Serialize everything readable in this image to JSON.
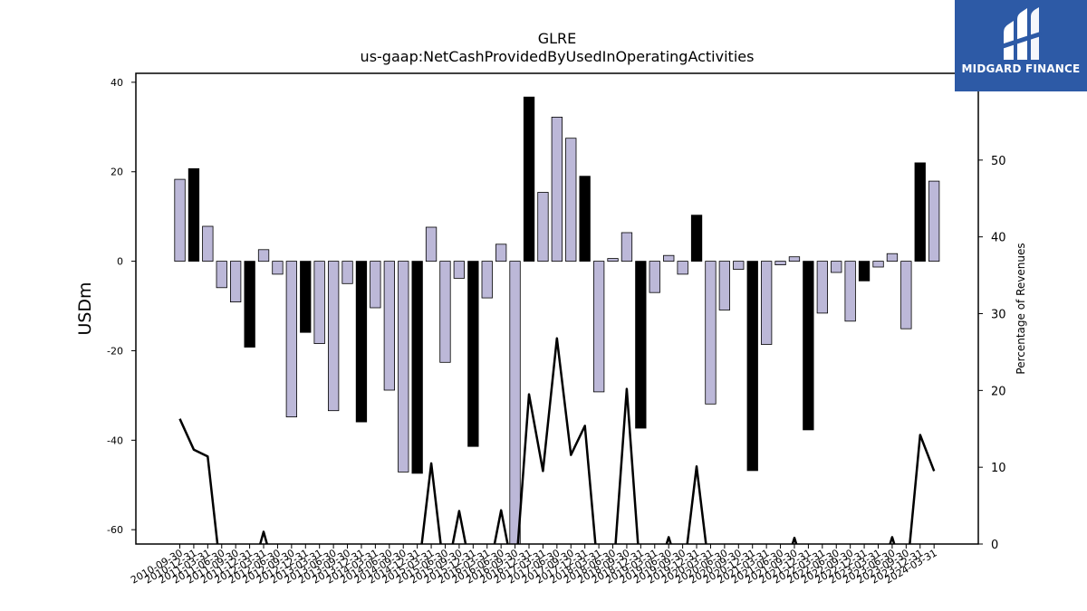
{
  "brand": {
    "name": "MIDGARD FINANCE",
    "bg_color": "#2d5aa6"
  },
  "chart_data": {
    "type": "bar",
    "title": "GLRE",
    "subtitle": "us-gaap:NetCashProvidedByUsedInOperatingActivities",
    "ylabel": "USDm",
    "y2label": "Percentage of Revenues",
    "ylim": [
      -63.2,
      42
    ],
    "y2lim": [
      0,
      61.3
    ],
    "yticks": [
      -60,
      -40,
      -20,
      0,
      20,
      40
    ],
    "y2ticks": [
      0,
      10,
      20,
      30,
      40,
      50
    ],
    "x_labels_shown": [
      "2010-09-30",
      "2010-12-31",
      "2011-03-31",
      "2011-06-30",
      "2011-09-30",
      "2011-12-31",
      "2012-03-31",
      "2012-06-30",
      "2012-09-30",
      "2012-12-31",
      "2013-03-31",
      "2013-06-30",
      "2013-09-30",
      "2013-12-31",
      "2014-03-31",
      "2014-06-30",
      "2014-09-30",
      "2014-12-31",
      "2015-03-31",
      "2015-06-30",
      "2015-09-30",
      "2015-12-31",
      "2016-03-31",
      "2016-06-30",
      "2016-09-30",
      "2016-12-31",
      "2017-03-31",
      "2017-06-30",
      "2017-09-30",
      "2017-12-31",
      "2018-03-31",
      "2018-06-30",
      "2018-09-30",
      "2018-12-31",
      "2019-03-31",
      "2019-06-30",
      "2019-09-30",
      "2019-12-31",
      "2020-03-31",
      "2020-06-30",
      "2020-09-30",
      "2020-12-31",
      "2021-03-31",
      "2021-06-30",
      "2021-09-30",
      "2021-12-31",
      "2022-03-31",
      "2022-06-30",
      "2022-09-30",
      "2022-12-31",
      "2023-03-31",
      "2023-06-30",
      "2023-09-30",
      "2023-12-31",
      "2024-03-31"
    ],
    "bar_values": [
      18.3,
      20.7,
      7.8,
      -5.9,
      -9.1,
      -19.2,
      2.6,
      -2.9,
      -34.8,
      -15.9,
      -18.4,
      -33.4,
      -5.0,
      -35.9,
      -10.4,
      -28.8,
      -47.1,
      -47.4,
      7.6,
      -22.6,
      -3.8,
      -41.4,
      -8.2,
      3.8,
      -63.2,
      36.7,
      15.4,
      32.2,
      27.5,
      19.0,
      -29.2,
      0.6,
      6.4,
      -37.3,
      -7.0,
      1.3,
      -2.9,
      10.3,
      -31.9,
      -10.9,
      -1.8,
      -46.8,
      -18.6,
      -0.8,
      1.0,
      -37.7,
      -11.6,
      -2.5,
      -13.4,
      -4.4,
      -1.3,
      1.7,
      -15.1,
      22.0,
      17.9
    ],
    "bar_colors": [
      "#bcb8d8",
      "#000000",
      "#bcb8d8",
      "#bcb8d8",
      "#bcb8d8",
      "#000000",
      "#bcb8d8",
      "#bcb8d8",
      "#bcb8d8",
      "#000000",
      "#bcb8d8",
      "#bcb8d8",
      "#bcb8d8",
      "#000000",
      "#bcb8d8",
      "#bcb8d8",
      "#bcb8d8",
      "#000000",
      "#bcb8d8",
      "#bcb8d8",
      "#bcb8d8",
      "#000000",
      "#bcb8d8",
      "#bcb8d8",
      "#bcb8d8",
      "#000000",
      "#bcb8d8",
      "#bcb8d8",
      "#bcb8d8",
      "#000000",
      "#bcb8d8",
      "#bcb8d8",
      "#bcb8d8",
      "#000000",
      "#bcb8d8",
      "#bcb8d8",
      "#bcb8d8",
      "#000000",
      "#bcb8d8",
      "#bcb8d8",
      "#bcb8d8",
      "#000000",
      "#bcb8d8",
      "#bcb8d8",
      "#bcb8d8",
      "#000000",
      "#bcb8d8",
      "#bcb8d8",
      "#bcb8d8",
      "#000000",
      "#bcb8d8",
      "#bcb8d8",
      "#bcb8d8",
      "#000000",
      "#bcb8d8"
    ],
    "line_values_pct": [
      16.3,
      12.3,
      11.4,
      -5,
      -5,
      -5,
      1.6,
      -5,
      -5,
      -5,
      -5,
      -5,
      -5,
      -5,
      -5,
      -5,
      -5,
      -5,
      10.5,
      -5,
      4.3,
      -5,
      -5,
      4.4,
      -5,
      19.5,
      9.5,
      26.8,
      11.6,
      15.4,
      -5,
      -5,
      20.2,
      -5,
      -5,
      0.9,
      -5,
      10.1,
      -5,
      -5,
      -5,
      -5,
      -5,
      -5,
      0.8,
      -5,
      -5,
      -5,
      -5,
      -5,
      -5,
      0.9,
      -5,
      14.2,
      9.5
    ],
    "grid": false
  }
}
